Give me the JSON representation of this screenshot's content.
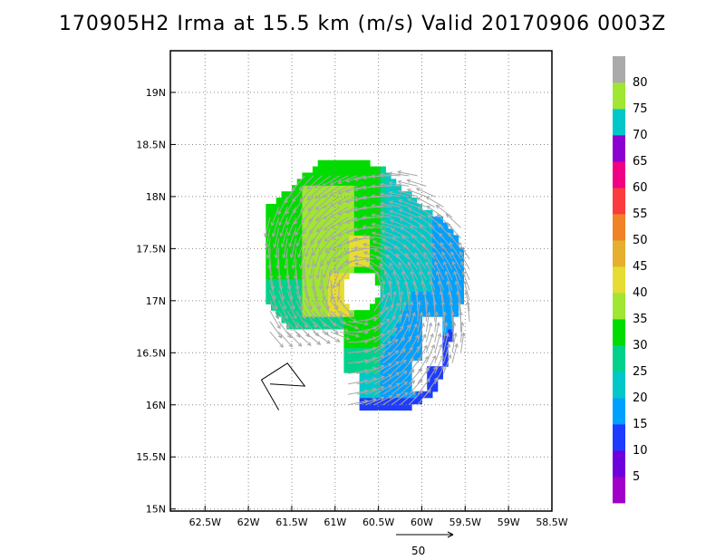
{
  "title": "170905H2 Irma at 15.5 km (m/s) Valid 20170906 0003Z",
  "reference_vector": {
    "label": "50"
  },
  "colorbar": {
    "levels": [
      "5",
      "10",
      "15",
      "20",
      "25",
      "30",
      "35",
      "40",
      "45",
      "50",
      "55",
      "60",
      "65",
      "70",
      "75",
      "80"
    ],
    "colors": [
      "#a000c8",
      "#6e00dc",
      "#1e3cff",
      "#00a0ff",
      "#00c8c8",
      "#00d28c",
      "#00dc00",
      "#a0e632",
      "#e6dc32",
      "#e6af2d",
      "#f08228",
      "#fa3c3c",
      "#f00082",
      "#8c00d2",
      "#00c8c8",
      "#a0e632",
      "#aaaaaa"
    ]
  },
  "chart_data": {
    "type": "heatmap",
    "title": "170905H2 Irma at 15.5 km (m/s) Valid 20170906 0003Z",
    "variable": "wind speed (m/s) with wind vectors",
    "x_axis": {
      "ticks": [
        "62.5W",
        "62W",
        "61.5W",
        "61W",
        "60.5W",
        "60W",
        "59.5W",
        "59W",
        "58.5W"
      ],
      "values": [
        -62.5,
        -62,
        -61.5,
        -61,
        -60.5,
        -60,
        -59.5,
        -59,
        -58.5
      ],
      "range": [
        -62.9,
        -58.5
      ]
    },
    "y_axis": {
      "ticks": [
        "15N",
        "15.5N",
        "16N",
        "16.5N",
        "17N",
        "17.5N",
        "18N",
        "18.5N",
        "19N"
      ],
      "values": [
        15,
        15.5,
        16,
        16.5,
        17,
        17.5,
        18,
        18.5,
        19
      ],
      "range": [
        14.98,
        19.4
      ]
    },
    "grid": true,
    "center": {
      "lon": -60.7,
      "lat": 17.1
    },
    "eye_radius_deg": 0.2,
    "data_extent": {
      "lon": [
        -61.8,
        -59.3
      ],
      "lat": [
        15.95,
        18.3
      ]
    },
    "speed_ranges": {
      "eyewall_core": [
        35,
        45
      ],
      "northwest": [
        30,
        40
      ],
      "southwest": [
        20,
        30
      ],
      "east": [
        15,
        25
      ],
      "southeast_edge": [
        5,
        15
      ]
    },
    "reference_vector_speed": 50,
    "flight_track": {
      "lon": [
        -61.75,
        -61.35,
        -61.55,
        -61.85,
        -61.65
      ],
      "lat": [
        16.2,
        16.18,
        16.4,
        16.24,
        15.95
      ]
    }
  }
}
